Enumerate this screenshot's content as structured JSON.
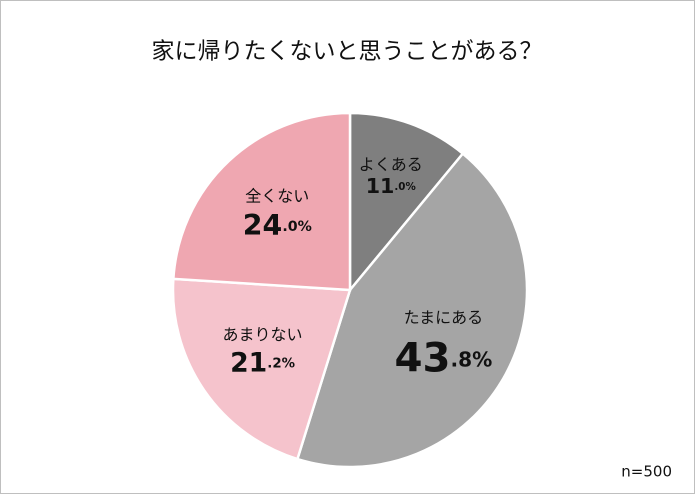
{
  "chart_data": {
    "type": "pie",
    "title": "家に帰りたくないと思うことがある？",
    "categories": [
      "よくある",
      "たまにある",
      "あまりない",
      "全くない"
    ],
    "values": [
      11.0,
      43.8,
      21.2,
      24.0
    ],
    "value_labels": [
      "11.0%",
      "43.8%",
      "21.2%",
      "24.0%"
    ],
    "colors": [
      "#7f7f7f",
      "#a5a5a5",
      "#f5c3cc",
      "#efa7b1"
    ],
    "note": "n=500"
  }
}
